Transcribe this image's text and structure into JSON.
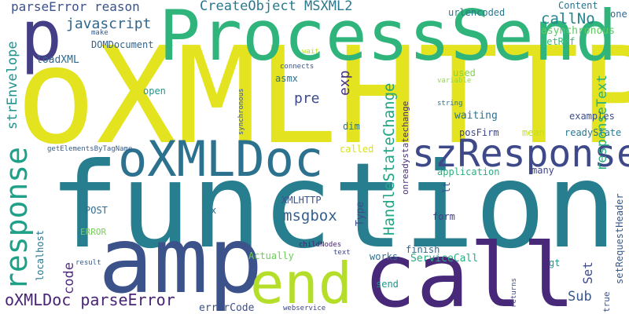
{
  "words": [
    {
      "text": "oXMLHTTP",
      "color": "#e4e31f",
      "orientation": "horizontal"
    },
    {
      "text": "function",
      "color": "#277e8e",
      "orientation": "horizontal"
    },
    {
      "text": "ProcessSend",
      "color": "#2fb47c",
      "orientation": "horizontal"
    },
    {
      "text": "amp",
      "color": "#3b528b",
      "orientation": "horizontal"
    },
    {
      "text": "call",
      "color": "#482878",
      "orientation": "horizontal"
    },
    {
      "text": "end",
      "color": "#b5de2b",
      "orientation": "horizontal"
    },
    {
      "text": "oXMLDoc",
      "color": "#2c728e",
      "orientation": "horizontal"
    },
    {
      "text": "szResponse",
      "color": "#3e4989",
      "orientation": "horizontal"
    },
    {
      "text": "p",
      "color": "#433e85",
      "orientation": "horizontal"
    },
    {
      "text": "response",
      "color": "#1fa088",
      "orientation": "vertical"
    },
    {
      "text": "oXMLDoc parseError",
      "color": "#482475",
      "orientation": "horizontal"
    },
    {
      "text": "parseError reason",
      "color": "#3b528b",
      "orientation": "horizontal"
    },
    {
      "text": "CreateObject MSXML2",
      "color": "#2a788e",
      "orientation": "horizontal"
    },
    {
      "text": "javascript",
      "color": "#30678d",
      "orientation": "horizontal"
    },
    {
      "text": "callNo",
      "color": "#25848e",
      "orientation": "horizontal"
    },
    {
      "text": "strEnvelope",
      "color": "#21918c",
      "orientation": "vertical"
    },
    {
      "text": "HandleStateChange",
      "color": "#21a685",
      "orientation": "vertical"
    },
    {
      "text": "responseText",
      "color": "#29af7f",
      "orientation": "vertical"
    },
    {
      "text": "exp",
      "color": "#46337e",
      "orientation": "vertical"
    },
    {
      "text": "pre",
      "color": "#3e4989",
      "orientation": "horizontal"
    },
    {
      "text": "msgbox",
      "color": "#35608d",
      "orientation": "horizontal"
    },
    {
      "text": "Set",
      "color": "#3e4a89",
      "orientation": "vertical"
    },
    {
      "text": "Sub",
      "color": "#39568c",
      "orientation": "horizontal"
    },
    {
      "text": "code",
      "color": "#4f2f7f",
      "orientation": "vertical"
    },
    {
      "text": "urlencoded",
      "color": "#2a788e",
      "orientation": "horizontal"
    },
    {
      "text": "Content",
      "color": "#2c738e",
      "orientation": "horizontal"
    },
    {
      "text": "one",
      "color": "#31688e",
      "orientation": "horizontal"
    },
    {
      "text": "asynchronous",
      "color": "#5ec962",
      "orientation": "horizontal"
    },
    {
      "text": "getRef",
      "color": "#3aba76",
      "orientation": "horizontal"
    },
    {
      "text": "make",
      "color": "#38588c",
      "orientation": "horizontal"
    },
    {
      "text": "DOMDocument",
      "color": "#33638d",
      "orientation": "horizontal"
    },
    {
      "text": "loadXML",
      "color": "#306a8e",
      "orientation": "horizontal"
    },
    {
      "text": "wait",
      "color": "#b5de2b",
      "orientation": "horizontal"
    },
    {
      "text": "connects",
      "color": "#3b528b",
      "orientation": "horizontal"
    },
    {
      "text": "variable",
      "color": "#8fd744",
      "orientation": "horizontal"
    },
    {
      "text": "used",
      "color": "#84d44b",
      "orientation": "horizontal"
    },
    {
      "text": "asmx",
      "color": "#2d718e",
      "orientation": "horizontal"
    },
    {
      "text": "open",
      "color": "#1f988b",
      "orientation": "horizontal"
    },
    {
      "text": "string",
      "color": "#2c728e",
      "orientation": "horizontal"
    },
    {
      "text": "waiting",
      "color": "#2c728e",
      "orientation": "horizontal"
    },
    {
      "text": "examples",
      "color": "#3c4f8a",
      "orientation": "horizontal"
    },
    {
      "text": "dim",
      "color": "#2a768e",
      "orientation": "horizontal"
    },
    {
      "text": "onreadystatechange",
      "color": "#472c7a",
      "orientation": "vertical"
    },
    {
      "text": "synchronous",
      "color": "#3b528b",
      "orientation": "vertical"
    },
    {
      "text": "posFirm",
      "color": "#3f4788",
      "orientation": "horizontal"
    },
    {
      "text": "mean",
      "color": "#c2df23",
      "orientation": "horizontal"
    },
    {
      "text": "readyState",
      "color": "#2a788e",
      "orientation": "horizontal"
    },
    {
      "text": "called",
      "color": "#d8e219",
      "orientation": "horizontal"
    },
    {
      "text": "getElementsByTagName",
      "color": "#365c8d",
      "orientation": "horizontal"
    },
    {
      "text": "application",
      "color": "#2ab07f",
      "orientation": "horizontal"
    },
    {
      "text": "lt",
      "color": "#3b528b",
      "orientation": "vertical"
    },
    {
      "text": "many",
      "color": "#414487",
      "orientation": "horizontal"
    },
    {
      "text": "XMLHTTP",
      "color": "#3b528b",
      "orientation": "horizontal"
    },
    {
      "text": "POST",
      "color": "#2f6c8e",
      "orientation": "horizontal"
    },
    {
      "text": "x",
      "color": "#2d708e",
      "orientation": "horizontal"
    },
    {
      "text": "Type",
      "color": "#3e4c8a",
      "orientation": "vertical"
    },
    {
      "text": "form",
      "color": "#424086",
      "orientation": "horizontal"
    },
    {
      "text": "ERROR",
      "color": "#75d054",
      "orientation": "horizontal"
    },
    {
      "text": "localhost",
      "color": "#2a768e",
      "orientation": "vertical"
    },
    {
      "text": "Actually",
      "color": "#6ccd5a",
      "orientation": "horizontal"
    },
    {
      "text": "childNodes",
      "color": "#482475",
      "orientation": "horizontal"
    },
    {
      "text": "text",
      "color": "#3f4788",
      "orientation": "horizontal"
    },
    {
      "text": "works",
      "color": "#2d708e",
      "orientation": "horizontal"
    },
    {
      "text": "finish",
      "color": "#31688e",
      "orientation": "horizontal"
    },
    {
      "text": "ServiceCall",
      "color": "#27ad81",
      "orientation": "horizontal"
    },
    {
      "text": "gt",
      "color": "#1e9b8a",
      "orientation": "horizontal"
    },
    {
      "text": "setRequestHeader",
      "color": "#38598c",
      "orientation": "vertical"
    },
    {
      "text": "true",
      "color": "#3c508b",
      "orientation": "vertical"
    },
    {
      "text": "result",
      "color": "#365d8d",
      "orientation": "horizontal"
    },
    {
      "text": "send",
      "color": "#1f958b",
      "orientation": "horizontal"
    },
    {
      "text": "returns",
      "color": "#3e4c8a",
      "orientation": "vertical"
    },
    {
      "text": "errorCode",
      "color": "#3c4f8a",
      "orientation": "horizontal"
    },
    {
      "text": "webservice",
      "color": "#404588",
      "orientation": "horizontal"
    }
  ]
}
